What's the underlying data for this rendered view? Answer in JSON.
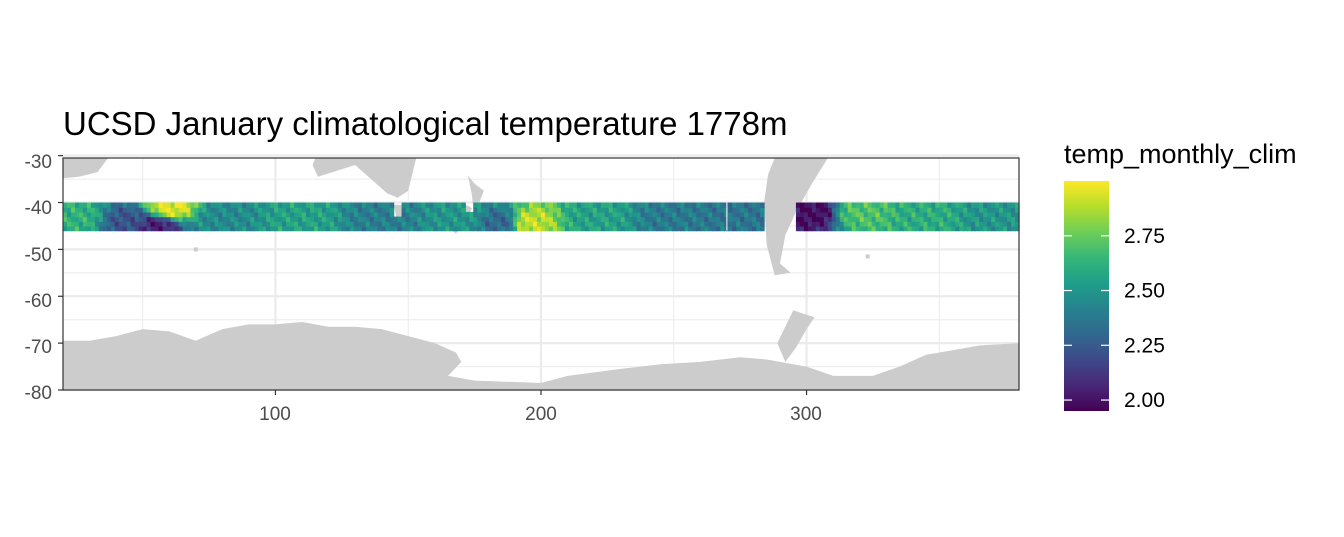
{
  "chart_data": {
    "type": "heatmap",
    "title": "UCSD January climatological temperature 1778m",
    "xlabel": "",
    "ylabel": "",
    "xlim": [
      20,
      380
    ],
    "ylim": [
      -80,
      -30.5
    ],
    "x_ticks": [
      "100",
      "200",
      "300"
    ],
    "y_ticks": [
      "-30",
      "-40",
      "-50",
      "-60",
      "-70",
      "-80"
    ],
    "grid": true,
    "colormap": "viridis",
    "data_band_lat": [
      -46,
      -40
    ],
    "data_band_lon": [
      20,
      380
    ],
    "sample_values": [
      {
        "lon": 25,
        "lat": -43,
        "value": 2.62
      },
      {
        "lon": 45,
        "lat": -44,
        "value": 2.22
      },
      {
        "lon": 55,
        "lat": -45,
        "value": 2.05
      },
      {
        "lon": 60,
        "lat": -41,
        "value": 2.95
      },
      {
        "lon": 80,
        "lat": -43,
        "value": 2.45
      },
      {
        "lon": 110,
        "lat": -43,
        "value": 2.55
      },
      {
        "lon": 140,
        "lat": -43,
        "value": 2.4
      },
      {
        "lon": 170,
        "lat": -43,
        "value": 2.5
      },
      {
        "lon": 185,
        "lat": -44,
        "value": 2.3
      },
      {
        "lon": 195,
        "lat": -44,
        "value": 2.9
      },
      {
        "lon": 220,
        "lat": -43,
        "value": 2.55
      },
      {
        "lon": 250,
        "lat": -43,
        "value": 2.38
      },
      {
        "lon": 275,
        "lat": -43,
        "value": 2.36
      },
      {
        "lon": 302,
        "lat": -42,
        "value": 1.98
      },
      {
        "lon": 320,
        "lat": -42,
        "value": 2.7
      },
      {
        "lon": 345,
        "lat": -43,
        "value": 2.6
      },
      {
        "lon": 370,
        "lat": -43,
        "value": 2.5
      }
    ],
    "legend": {
      "title": "temp_monthly_clim",
      "position": "right",
      "min": 1.95,
      "max": 3.0,
      "breaks": [
        2.75,
        2.5,
        2.25,
        2.0
      ],
      "break_labels": [
        "2.75",
        "2.50",
        "2.25",
        "2.00"
      ]
    }
  },
  "colors": {
    "land": "#cccccc",
    "panel_border": "#333333",
    "grid_major": "#ebebeb",
    "viridis": [
      "#440154",
      "#482878",
      "#3e4989",
      "#31688e",
      "#26828e",
      "#1f9e89",
      "#35b779",
      "#6ece58",
      "#b5de2b",
      "#fde725"
    ]
  }
}
